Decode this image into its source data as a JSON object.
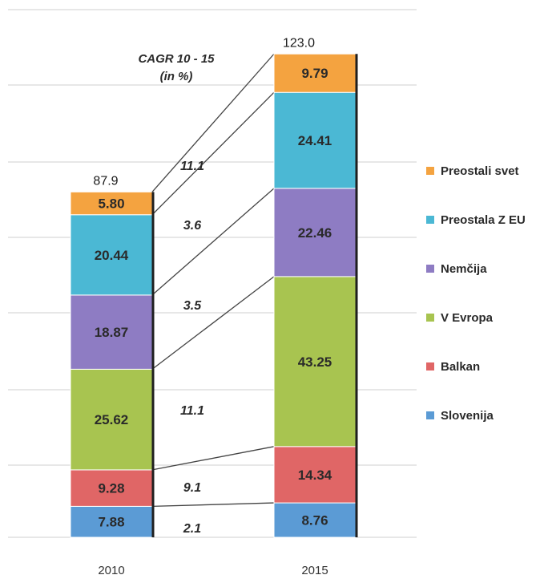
{
  "chart_data": {
    "type": "bar",
    "stacked": true,
    "categories": [
      "2010",
      "2015"
    ],
    "totals": [
      "87.9",
      "123.0"
    ],
    "series": [
      {
        "name": "Slovenija",
        "values": [
          7.88,
          8.76
        ],
        "labels": [
          "7.88",
          "8.76"
        ],
        "color": "#5b9bd5"
      },
      {
        "name": "Balkan",
        "values": [
          9.28,
          14.34
        ],
        "labels": [
          "9.28",
          "14.34"
        ],
        "color": "#e06666"
      },
      {
        "name": "V Evropa",
        "values": [
          25.62,
          43.25
        ],
        "labels": [
          "25.62",
          "43.25"
        ],
        "color": "#a8c450"
      },
      {
        "name": "Nemčija",
        "values": [
          18.87,
          22.46
        ],
        "labels": [
          "18.87",
          "22.46"
        ],
        "color": "#8e7cc3"
      },
      {
        "name": "Preostala Z EU",
        "values": [
          20.44,
          24.41
        ],
        "labels": [
          "20.44",
          "24.41"
        ],
        "color": "#4bb8d4"
      },
      {
        "name": "Preostali svet",
        "values": [
          5.8,
          9.79
        ],
        "labels": [
          "5.80",
          "9.79"
        ],
        "color": "#f4a340"
      }
    ],
    "cagr": {
      "title_line1": "CAGR 10 - 15",
      "title_line2": "(in %)",
      "values": [
        "2.1",
        "9.1",
        "11.1",
        "3.5",
        "3.6",
        "11.1"
      ]
    },
    "ylim": [
      0,
      140
    ],
    "grid": true,
    "legend_position": "right",
    "legend_order": [
      "Preostali svet",
      "Preostala Z EU",
      "Nemčija",
      "V Evropa",
      "Balkan",
      "Slovenija"
    ]
  }
}
